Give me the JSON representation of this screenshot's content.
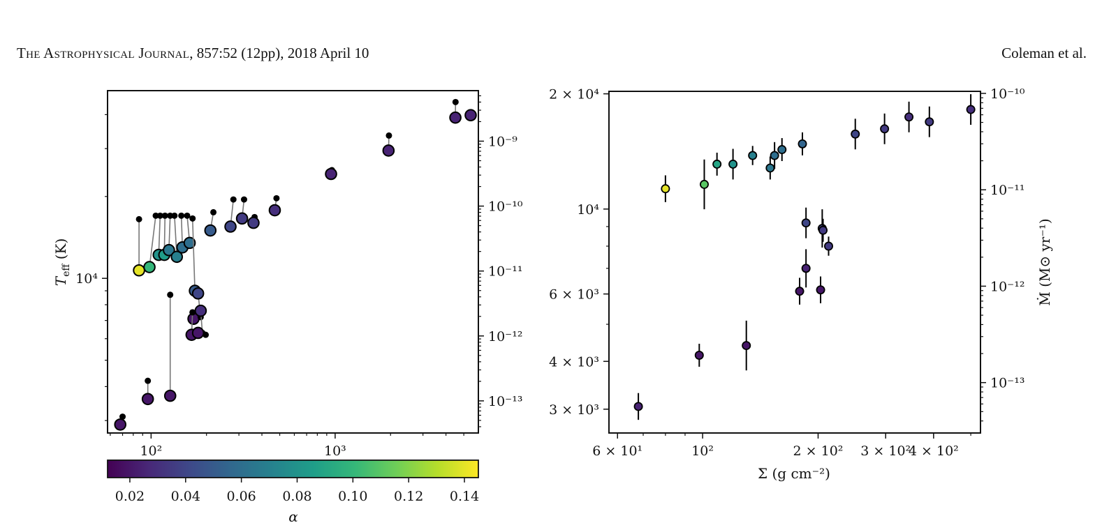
{
  "header": {
    "journal": "The Astrophysical Journal",
    "citation": ", 857:52 (12pp), 2018 April 10",
    "authors": "Coleman et al."
  },
  "colors": {
    "viridis": [
      "#440154",
      "#482878",
      "#3e4989",
      "#31688e",
      "#26828e",
      "#1f9e89",
      "#35b779",
      "#6ece58",
      "#b5de2b",
      "#fde725"
    ]
  },
  "chart_data": [
    {
      "type": "scatter",
      "panel": "left",
      "xscale": "log",
      "yscale": "log",
      "xlim": [
        58,
        6000
      ],
      "ylim": [
        2700,
        49000
      ],
      "right_ylim": [
        3.2e-14,
        6e-09
      ],
      "xticks": [
        {
          "v": 100,
          "label": "10²"
        },
        {
          "v": 1000,
          "label": "10³"
        }
      ],
      "yticks": [
        {
          "v": 10000,
          "label": "10⁴"
        }
      ],
      "right_yticks": [
        {
          "v": 1e-13,
          "label": "10⁻¹³"
        },
        {
          "v": 1e-12,
          "label": "10⁻¹²"
        },
        {
          "v": 1e-11,
          "label": "10⁻¹¹"
        },
        {
          "v": 1e-10,
          "label": "10⁻¹⁰"
        },
        {
          "v": 1e-09,
          "label": "10⁻⁹"
        }
      ],
      "ylabel": "T_eff (K)",
      "colorbar": {
        "label": "α",
        "range": [
          0.012,
          0.145
        ],
        "ticks": [
          "0.02",
          "0.04",
          "0.06",
          "0.08",
          "0.10",
          "0.12",
          "0.14"
        ]
      },
      "points": [
        {
          "x": 68,
          "teff": 2900,
          "alpha": 0.02,
          "x2": 70,
          "y2": 3100
        },
        {
          "x": 96,
          "teff": 3600,
          "alpha": 0.02,
          "x2": 96,
          "y2": 4200
        },
        {
          "x": 127,
          "teff": 3700,
          "alpha": 0.02,
          "x2": 127,
          "y2": 8700
        },
        {
          "x": 86,
          "teff": 10700,
          "alpha": 0.14,
          "x2": 86,
          "y2": 16500
        },
        {
          "x": 98,
          "teff": 11000,
          "alpha": 0.1,
          "x2": 106,
          "y2": 17000
        },
        {
          "x": 110,
          "teff": 12200,
          "alpha": 0.08,
          "x2": 112,
          "y2": 17000
        },
        {
          "x": 118,
          "teff": 12200,
          "alpha": 0.085,
          "x2": 119,
          "y2": 17000
        },
        {
          "x": 125,
          "teff": 12700,
          "alpha": 0.065,
          "x2": 127,
          "y2": 17000
        },
        {
          "x": 138,
          "teff": 12000,
          "alpha": 0.07,
          "x2": 134,
          "y2": 17000
        },
        {
          "x": 148,
          "teff": 13000,
          "alpha": 0.06,
          "x2": 146,
          "y2": 17000
        },
        {
          "x": 162,
          "teff": 13500,
          "alpha": 0.06,
          "x2": 157,
          "y2": 17000
        },
        {
          "x": 173,
          "teff": 9000,
          "alpha": 0.05,
          "x2": 168,
          "y2": 16600
        },
        {
          "x": 170,
          "teff": 7100,
          "alpha": 0.02,
          "x2": 168,
          "y2": 7500
        },
        {
          "x": 166,
          "teff": 6200,
          "alpha": 0.02,
          "x2": 168,
          "y2": 7500
        },
        {
          "x": 180,
          "teff": 8800,
          "alpha": 0.04,
          "x2": 186,
          "y2": 7200
        },
        {
          "x": 186,
          "teff": 7600,
          "alpha": 0.03,
          "x2": 190,
          "y2": 6300
        },
        {
          "x": 180,
          "teff": 6300,
          "alpha": 0.02,
          "x2": 198,
          "y2": 6200
        },
        {
          "x": 210,
          "teff": 15000,
          "alpha": 0.05,
          "x2": 218,
          "y2": 17500
        },
        {
          "x": 270,
          "teff": 15500,
          "alpha": 0.04,
          "x2": 280,
          "y2": 19500
        },
        {
          "x": 312,
          "teff": 16600,
          "alpha": 0.035,
          "x2": 320,
          "y2": 19500
        },
        {
          "x": 360,
          "teff": 16000,
          "alpha": 0.035,
          "x2": 365,
          "y2": 16800
        },
        {
          "x": 470,
          "teff": 17800,
          "alpha": 0.03,
          "x2": 480,
          "y2": 19700
        },
        {
          "x": 950,
          "teff": 24200,
          "alpha": 0.025,
          "x2": 960,
          "y2": 25000
        },
        {
          "x": 1950,
          "teff": 29500,
          "alpha": 0.025,
          "x2": 1960,
          "y2": 33500
        },
        {
          "x": 4500,
          "teff": 39000,
          "alpha": 0.025,
          "x2": 4510,
          "y2": 44500
        },
        {
          "x": 5450,
          "teff": 39800,
          "alpha": 0.025,
          "x2": 5480,
          "y2": 39000
        }
      ]
    },
    {
      "type": "scatter",
      "panel": "right",
      "xscale": "log",
      "yscale": "log",
      "xlim": [
        57,
        530
      ],
      "ylim": [
        2600,
        20300
      ],
      "right_ylim": [
        3e-14,
        1.05e-10
      ],
      "xticks": [
        {
          "v": 60,
          "label": "6 × 10¹"
        },
        {
          "v": 100,
          "label": "10²"
        },
        {
          "v": 200,
          "label": "2 × 10²"
        },
        {
          "v": 300,
          "label": "3 × 10²"
        },
        {
          "v": 400,
          "label": "4 × 10²"
        }
      ],
      "yticks": [
        {
          "v": 3000,
          "label": "3 × 10³"
        },
        {
          "v": 4000,
          "label": "4 × 10³"
        },
        {
          "v": 6000,
          "label": "6 × 10³"
        },
        {
          "v": 10000,
          "label": "10⁴"
        },
        {
          "v": 20000,
          "label": "2 × 10⁴"
        }
      ],
      "right_yticks": [
        {
          "v": 1e-13,
          "label": "10⁻¹³"
        },
        {
          "v": 1e-12,
          "label": "10⁻¹²"
        },
        {
          "v": 1e-11,
          "label": "10⁻¹¹"
        },
        {
          "v": 1e-10,
          "label": "10⁻¹⁰"
        }
      ],
      "xlabel": "Σ (g cm⁻²)",
      "right_ylabel": "Ṁ (M⊙ yr⁻¹)",
      "points": [
        {
          "x": 68,
          "teff": 3050,
          "alpha": 0.025,
          "err": 0.035
        },
        {
          "x": 98,
          "teff": 4150,
          "alpha": 0.02,
          "err": 0.03
        },
        {
          "x": 130,
          "teff": 4400,
          "alpha": 0.02,
          "err": 0.065
        },
        {
          "x": 80,
          "teff": 11300,
          "alpha": 0.14,
          "err": 0.035
        },
        {
          "x": 101,
          "teff": 11600,
          "alpha": 0.11,
          "err": 0.065
        },
        {
          "x": 109,
          "teff": 13100,
          "alpha": 0.09,
          "err": 0.03
        },
        {
          "x": 120,
          "teff": 13100,
          "alpha": 0.08,
          "err": 0.04
        },
        {
          "x": 135,
          "teff": 13800,
          "alpha": 0.07,
          "err": 0.025
        },
        {
          "x": 150,
          "teff": 12800,
          "alpha": 0.065,
          "err": 0.03
        },
        {
          "x": 154,
          "teff": 13800,
          "alpha": 0.06,
          "err": 0.035
        },
        {
          "x": 161,
          "teff": 14300,
          "alpha": 0.06,
          "err": 0.03
        },
        {
          "x": 182,
          "teff": 14800,
          "alpha": 0.055,
          "err": 0.03
        },
        {
          "x": 179,
          "teff": 6100,
          "alpha": 0.02,
          "err": 0.035
        },
        {
          "x": 186,
          "teff": 7000,
          "alpha": 0.025,
          "err": 0.05
        },
        {
          "x": 186,
          "teff": 9200,
          "alpha": 0.04,
          "err": 0.04
        },
        {
          "x": 203,
          "teff": 6150,
          "alpha": 0.02,
          "err": 0.035
        },
        {
          "x": 205,
          "teff": 8900,
          "alpha": 0.04,
          "err": 0.05
        },
        {
          "x": 206,
          "teff": 8800,
          "alpha": 0.035,
          "err": 0.03
        },
        {
          "x": 213,
          "teff": 8000,
          "alpha": 0.035,
          "err": 0.025
        },
        {
          "x": 250,
          "teff": 15700,
          "alpha": 0.04,
          "err": 0.04
        },
        {
          "x": 298,
          "teff": 16200,
          "alpha": 0.035,
          "err": 0.04
        },
        {
          "x": 345,
          "teff": 17400,
          "alpha": 0.03,
          "err": 0.04
        },
        {
          "x": 390,
          "teff": 16900,
          "alpha": 0.035,
          "err": 0.04
        },
        {
          "x": 500,
          "teff": 18200,
          "alpha": 0.03,
          "err": 0.04
        }
      ]
    }
  ]
}
